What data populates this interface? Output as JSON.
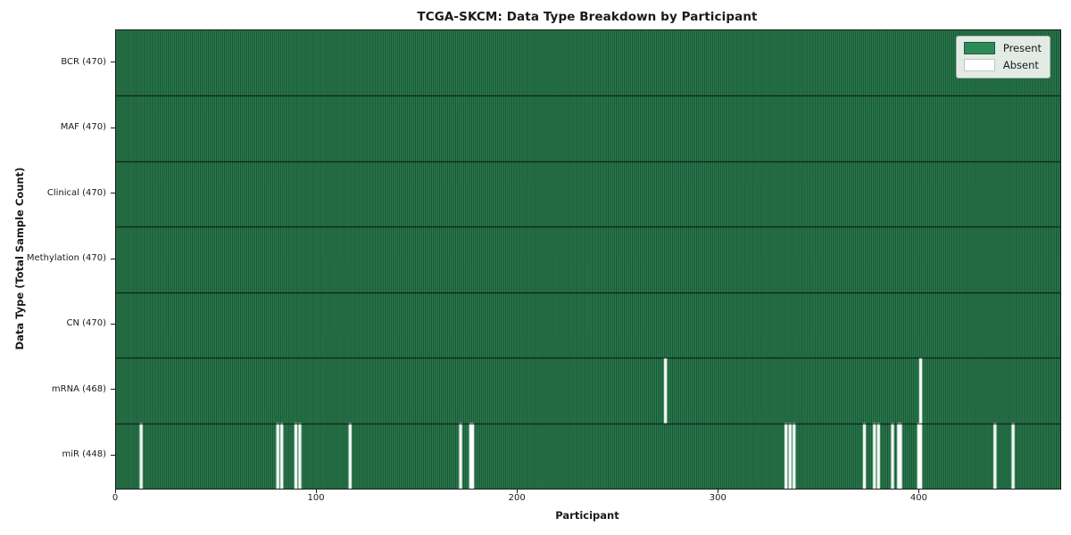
{
  "chart_data": {
    "type": "heatmap",
    "title": "TCGA-SKCM: Data Type Breakdown by Participant",
    "xlabel": "Participant",
    "ylabel": "Data Type (Total Sample Count)",
    "x_ticks": [
      0,
      100,
      200,
      300,
      400
    ],
    "x_range": [
      0,
      470
    ],
    "n_participants": 470,
    "grid": false,
    "legend_position": "upper right",
    "legend": [
      {
        "label": "Present",
        "color": "#2e8b57"
      },
      {
        "label": "Absent",
        "color": "#ffffff"
      }
    ],
    "colors": {
      "present": "#2e8b57",
      "absent": "#ffffff",
      "cell_edge": "rgba(0,0,0,0.62)",
      "row_divider": "rgba(0,0,0,0.82)",
      "axis": "#1a1a1a"
    },
    "rows": [
      {
        "data_type": "BCR",
        "total_samples": 470,
        "tick_label": "BCR (470)",
        "absent_participants": []
      },
      {
        "data_type": "MAF",
        "total_samples": 470,
        "tick_label": "MAF (470)",
        "absent_participants": []
      },
      {
        "data_type": "Clinical",
        "total_samples": 470,
        "tick_label": "Clinical (470)",
        "absent_participants": []
      },
      {
        "data_type": "Methylation",
        "total_samples": 470,
        "tick_label": "Methylation (470)",
        "absent_participants": []
      },
      {
        "data_type": "CN",
        "total_samples": 470,
        "tick_label": "CN (470)",
        "absent_participants": []
      },
      {
        "data_type": "mRNA",
        "total_samples": 468,
        "tick_label": "mRNA (468)",
        "absent_participants": [
          273,
          400
        ]
      },
      {
        "data_type": "miR",
        "total_samples": 448,
        "tick_label": "miR (448)",
        "absent_participants": [
          12,
          80,
          82,
          89,
          91,
          116,
          171,
          176,
          177,
          333,
          335,
          337,
          372,
          377,
          379,
          386,
          389,
          390,
          399,
          400,
          437,
          446
        ]
      }
    ]
  }
}
